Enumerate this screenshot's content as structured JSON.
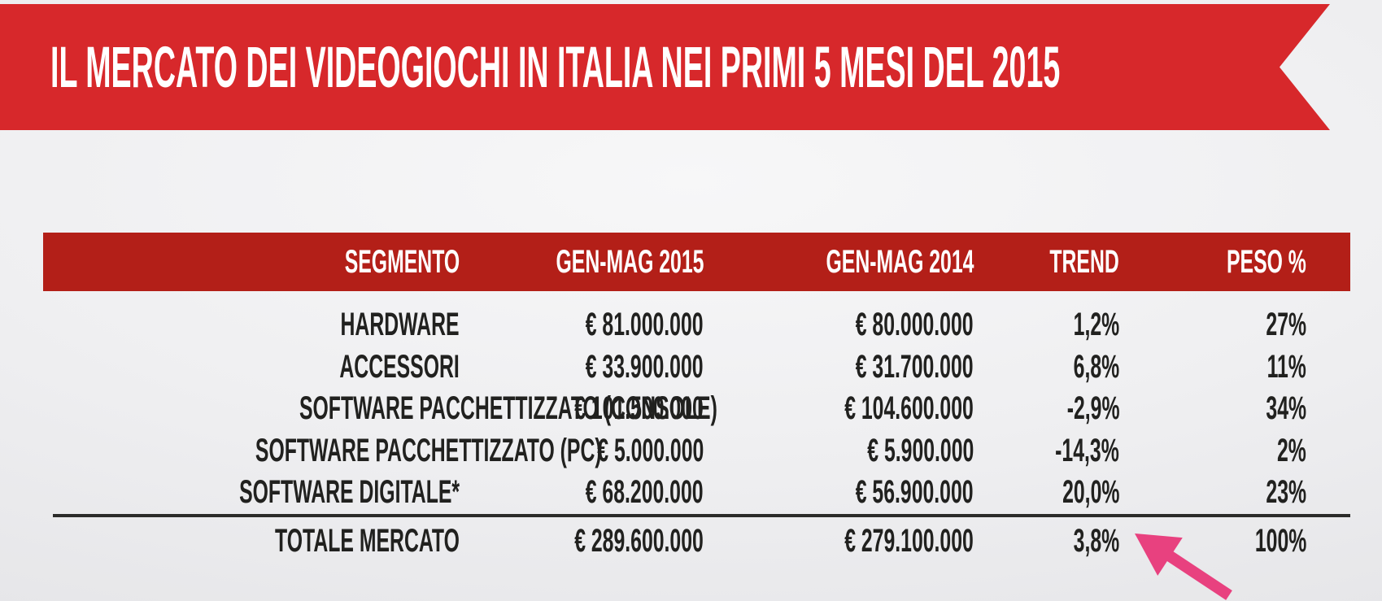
{
  "banner": {
    "title": "IL MERCATO DEI VIDEOGIOCHI IN ITALIA NEI PRIMI 5 MESI DEL 2015"
  },
  "chart_data": {
    "type": "table",
    "title": "IL MERCATO DEI VIDEOGIOCHI IN ITALIA NEI PRIMI 5 MESI DEL 2015",
    "columns": [
      "SEGMENTO",
      "GEN-MAG 2015",
      "GEN-MAG 2014",
      "TREND",
      "PESO %"
    ],
    "rows": [
      [
        "HARDWARE",
        "€ 81.000.000",
        "€ 80.000.000",
        "1,2%",
        "27%"
      ],
      [
        "ACCESSORI",
        "€ 33.900.000",
        "€ 31.700.000",
        "6,8%",
        "11%"
      ],
      [
        "SOFTWARE PACCHETTIZZATO (CONSOLE)",
        "€ 101.500.000",
        "€ 104.600.000",
        "-2,9%",
        "34%"
      ],
      [
        "SOFTWARE PACCHETTIZZATO (PC)",
        "€ 5.000.000",
        "€ 5.900.000",
        "-14,3%",
        "2%"
      ],
      [
        "SOFTWARE DIGITALE*",
        "€ 68.200.000",
        "€ 56.900.000",
        "20,0%",
        "23%"
      ]
    ],
    "total_row": [
      "TOTALE MERCATO",
      "€ 289.600.000",
      "€ 279.100.000",
      "3,8%",
      "100%"
    ],
    "values_unit": "EUR",
    "legend_position": "none",
    "grid": false
  },
  "annotation": {
    "arrow_icon": "arrow-up-left",
    "points_to": "3,8%"
  },
  "colors": {
    "banner_red": "#d7282b",
    "header_red": "#b31f18",
    "text_dark": "#21211f",
    "divider_dark": "#2b2b29",
    "arrow_pink": "#e8417f"
  }
}
